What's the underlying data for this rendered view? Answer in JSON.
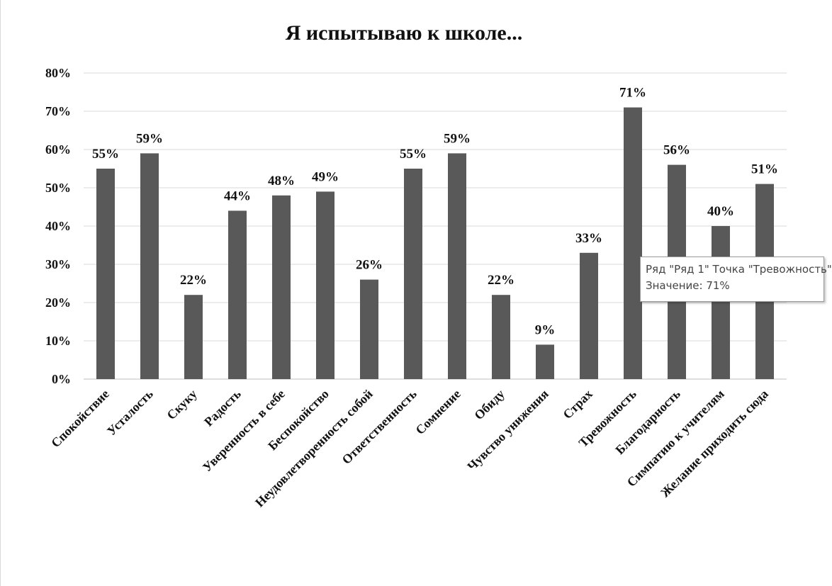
{
  "chart_data": {
    "type": "bar",
    "title": "Я испытываю к школе...",
    "xlabel": "",
    "ylabel": "",
    "ylim": [
      0,
      0.8
    ],
    "yticks": [
      "0%",
      "10%",
      "20%",
      "30%",
      "40%",
      "50%",
      "60%",
      "70%",
      "80%"
    ],
    "grid": true,
    "bar_color": "#595959",
    "categories": [
      "Спокойствие",
      "Усталость",
      "Скуку",
      "Радость",
      "Уверенность в себе",
      "Беспокойство",
      "Неудовлетворенность собой",
      "Ответственность",
      "Сомнение",
      "Обиду",
      "Чувство унижения",
      "Страх",
      "Тревожность",
      "Благодарность",
      "Симпатию к учителям",
      "Желание приходить сюда"
    ],
    "values": [
      0.55,
      0.59,
      0.22,
      0.44,
      0.48,
      0.49,
      0.26,
      0.55,
      0.59,
      0.22,
      0.09,
      0.33,
      0.71,
      0.56,
      0.4,
      0.51
    ],
    "data_labels": [
      "55%",
      "59%",
      "22%",
      "44%",
      "48%",
      "49%",
      "26%",
      "55%",
      "59%",
      "22%",
      "9%",
      "33%",
      "71%",
      "56%",
      "40%",
      "51%"
    ]
  },
  "tooltip": {
    "line1": "Ряд \"Ряд 1\" Точка \"Тревожность\"",
    "line2": "Значение: 71%"
  }
}
